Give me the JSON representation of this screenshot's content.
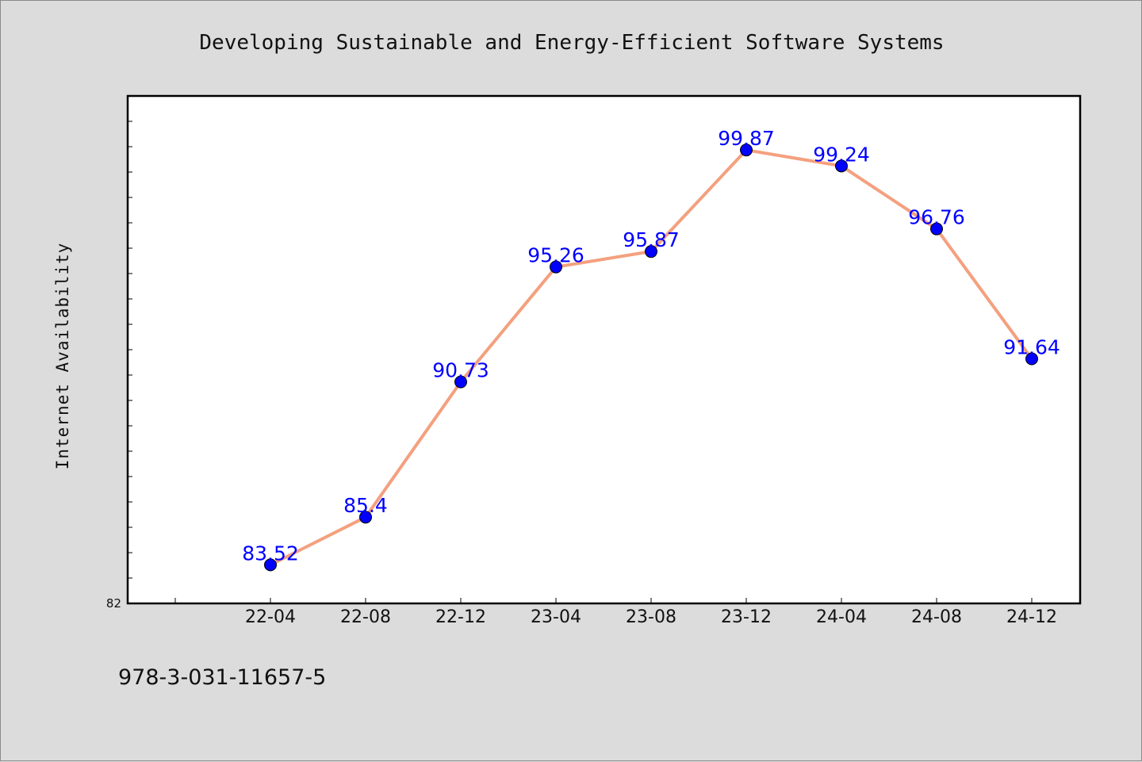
{
  "chart_data": {
    "type": "line",
    "title": "Developing Sustainable and Energy-Efficient Software Systems",
    "xlabel": "",
    "ylabel": "Internet Availability",
    "categories": [
      "22-04",
      "22-08",
      "22-12",
      "23-04",
      "23-08",
      "23-12",
      "24-04",
      "24-08",
      "24-12"
    ],
    "series": [
      {
        "values": [
          83.52,
          85.4,
          90.73,
          95.26,
          95.87,
          99.87,
          99.24,
          96.76,
          91.64
        ],
        "data_labels": [
          "83.52",
          "85.4",
          "90.73",
          "95.26",
          "95.87",
          "99.87",
          "99.24",
          "96.76",
          "91.64"
        ]
      }
    ],
    "y_tick_labels": [
      {
        "value": 82,
        "label": "82"
      }
    ],
    "ylim": [
      82,
      102
    ],
    "grid": false,
    "legend": "none",
    "colors": {
      "line": "#f4a07f",
      "marker": "#0000ff",
      "data_label": "#0000ff",
      "background": "#dcdcdc",
      "plot_background": "#ffffff"
    }
  },
  "footer": {
    "isbn": "978-3-031-11657-5"
  }
}
